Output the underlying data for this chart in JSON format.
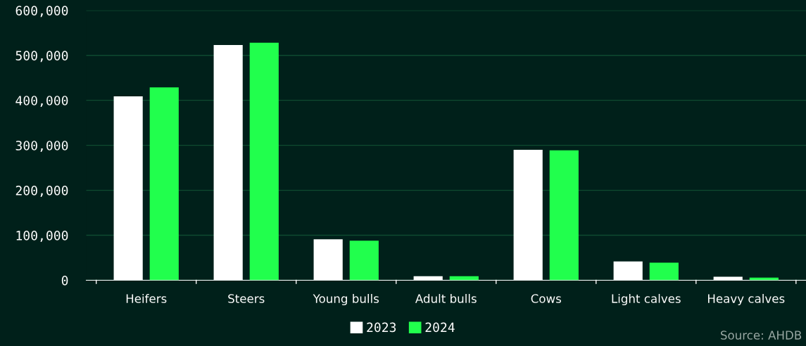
{
  "chart_data": {
    "type": "bar",
    "categories": [
      "Heifers",
      "Steers",
      "Young bulls",
      "Adult bulls",
      "Cows",
      "Light calves",
      "Heavy calves"
    ],
    "series": [
      {
        "name": "2023",
        "color": "#ffffff",
        "values": [
          409000,
          523000,
          91000,
          9000,
          290000,
          42000,
          8000
        ]
      },
      {
        "name": "2024",
        "color": "#21ff4d",
        "values": [
          429000,
          528000,
          88000,
          9000,
          289000,
          39000,
          6000
        ]
      }
    ],
    "ylim": [
      0,
      600000
    ],
    "yticks": [
      {
        "value": 0,
        "label": "0"
      },
      {
        "value": 100000,
        "label": "100,000"
      },
      {
        "value": 200000,
        "label": "200,000"
      },
      {
        "value": 300000,
        "label": "300,000"
      },
      {
        "value": 400000,
        "label": "400,000"
      },
      {
        "value": 500000,
        "label": "500,000"
      },
      {
        "value": 600000,
        "label": "600,000"
      }
    ],
    "grid": "y",
    "legend": "bottom",
    "annotations": [
      "Source: AHDB"
    ]
  }
}
